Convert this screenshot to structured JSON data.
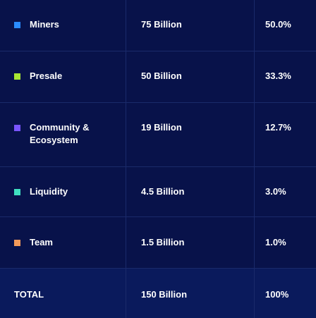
{
  "rows": [
    {
      "label": "Miners",
      "amount": "75 Billion",
      "percent": "50.0%",
      "color": "#2a8cff"
    },
    {
      "label": "Presale",
      "amount": "50 Billion",
      "percent": "33.3%",
      "color": "#a8e632"
    },
    {
      "label": "Community & Ecosystem",
      "amount": "19 Billion",
      "percent": "12.7%",
      "color": "#7a55ff"
    },
    {
      "label": "Liquidity",
      "amount": "4.5 Billion",
      "percent": "3.0%",
      "color": "#3fe0c0"
    },
    {
      "label": "Team",
      "amount": "1.5 Billion",
      "percent": "1.0%",
      "color": "#f29a5a"
    }
  ],
  "total": {
    "label": "TOTAL",
    "amount": "150 Billion",
    "percent": "100%"
  }
}
